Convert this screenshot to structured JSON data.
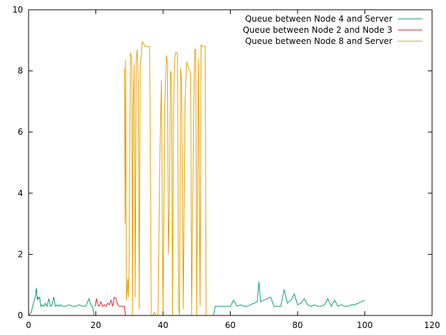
{
  "chart_data": {
    "type": "line",
    "title": "",
    "xlabel": "",
    "ylabel": "",
    "xlim": [
      0,
      120
    ],
    "ylim": [
      0,
      10
    ],
    "xticks": [
      0,
      20,
      40,
      60,
      80,
      100,
      120
    ],
    "yticks": [
      0,
      2,
      4,
      6,
      8,
      10
    ],
    "grid": false,
    "legend_position": "top-right",
    "series": [
      {
        "name": "Queue between Node 4 and Server",
        "color": "#009e73",
        "x": [
          0,
          0.8,
          1.2,
          1.6,
          2.0,
          2.3,
          2.6,
          2.8,
          3.0,
          3.3,
          3.6,
          4.0,
          4.5,
          5.0,
          5.5,
          6.0,
          6.5,
          7.0,
          7.5,
          8.0,
          8.5,
          9.0,
          9.5,
          10.0,
          11.0,
          12.0,
          13.0,
          14.0,
          15.0,
          16.0,
          17.0,
          18.0,
          18.5,
          19.0,
          19.5,
          55.0,
          55.5,
          56.0,
          57.0,
          58.0,
          59.0,
          60.0,
          61.0,
          62.0,
          63.0,
          64.0,
          65.0,
          66.0,
          67.0,
          68.0,
          68.5,
          69.0,
          70.0,
          71.0,
          72.0,
          73.0,
          74.0,
          75.0,
          76.0,
          77.0,
          78.0,
          79.0,
          80.0,
          81.0,
          82.0,
          83.0,
          84.0,
          85.0,
          86.0,
          87.0,
          88.0,
          89.0,
          90.0,
          91.0,
          92.0,
          93.0,
          94.0,
          95.0,
          96.0,
          97.0,
          98.0,
          99.0,
          100.0
        ],
        "values": [
          0,
          0.1,
          0.3,
          0.45,
          0.6,
          0.9,
          0.5,
          0.6,
          0.55,
          0.6,
          0.3,
          0.35,
          0.3,
          0.4,
          0.3,
          0.55,
          0.3,
          0.35,
          0.6,
          0.3,
          0.35,
          0.3,
          0.35,
          0.3,
          0.3,
          0.35,
          0.3,
          0.3,
          0.35,
          0.3,
          0.3,
          0.55,
          0.35,
          0.3,
          0.0,
          0.0,
          0.3,
          0.3,
          0.3,
          0.3,
          0.3,
          0.3,
          0.5,
          0.3,
          0.35,
          0.3,
          0.3,
          0.35,
          0.4,
          0.45,
          1.1,
          0.45,
          0.5,
          0.55,
          0.6,
          0.3,
          0.3,
          0.3,
          0.85,
          0.4,
          0.5,
          0.7,
          0.35,
          0.4,
          0.55,
          0.35,
          0.3,
          0.35,
          0.3,
          0.3,
          0.35,
          0.55,
          0.3,
          0.5,
          0.3,
          0.35,
          0.3,
          0.3,
          0.35,
          0.35,
          0.4,
          0.45,
          0.5
        ]
      },
      {
        "name": "Queue between Node 2 and Node 3",
        "color": "#e41a1c",
        "x": [
          19.8,
          20.2,
          20.6,
          21.0,
          21.5,
          22.0,
          22.5,
          23.0,
          23.5,
          24.0,
          24.5,
          25.0,
          25.5,
          26.0,
          26.5,
          27.0,
          27.5,
          28.0,
          28.5,
          28.8
        ],
        "values": [
          0.3,
          0.55,
          0.35,
          0.3,
          0.45,
          0.3,
          0.35,
          0.3,
          0.4,
          0.35,
          0.5,
          0.3,
          0.6,
          0.55,
          0.35,
          0.3,
          0.3,
          0.3,
          0.3,
          0.0
        ]
      },
      {
        "name": "Queue between Node 8 and Server",
        "color": "#e69f00",
        "x": [
          28.5,
          28.7,
          28.9,
          29.1,
          29.3,
          29.5,
          29.7,
          29.9,
          30.1,
          30.3,
          30.5,
          30.7,
          30.9,
          31.1,
          31.4,
          31.7,
          32.0,
          32.3,
          32.6,
          32.9,
          33.2,
          33.5,
          33.8,
          34.1,
          34.4,
          34.7,
          35.0,
          35.3,
          35.6,
          36.0,
          36.5,
          37.0,
          37.5,
          38.0,
          38.5,
          39.0,
          39.5,
          40.0,
          40.5,
          41.0,
          41.3,
          41.6,
          41.9,
          42.2,
          42.5,
          42.8,
          43.1,
          43.4,
          43.7,
          44.0,
          44.3,
          44.6,
          44.9,
          45.2,
          45.5,
          46.0,
          46.5,
          47.0,
          47.3,
          47.6,
          47.9,
          48.2,
          48.5,
          48.8,
          49.1,
          49.4,
          49.7,
          50.0,
          50.5,
          51.0,
          51.3,
          51.6,
          51.9,
          52.2,
          52.5,
          52.8,
          53.1,
          53.4,
          53.7,
          54.0,
          54.5,
          55.0
        ],
        "values": [
          8.1,
          3.0,
          8.35,
          0.5,
          0.8,
          1.2,
          0.6,
          1.6,
          5.2,
          8.6,
          8.5,
          8.45,
          0.0,
          6.8,
          8.2,
          0.6,
          8.3,
          8.7,
          7.8,
          0.2,
          8.2,
          8.5,
          8.95,
          8.9,
          8.85,
          8.8,
          8.8,
          8.8,
          8.8,
          8.8,
          0.0,
          0.0,
          0.1,
          0.0,
          0.0,
          4.9,
          7.7,
          0.0,
          6.8,
          8.5,
          8.3,
          2.0,
          3.6,
          8.0,
          7.9,
          0.0,
          6.7,
          8.3,
          8.6,
          8.6,
          8.55,
          0.3,
          0.0,
          8.1,
          7.7,
          0.2,
          6.9,
          8.3,
          8.2,
          8.1,
          8.0,
          7.9,
          0.0,
          3.3,
          6.7,
          8.7,
          8.7,
          0.0,
          8.4,
          0.3,
          8.85,
          8.8,
          8.8,
          8.8,
          8.8,
          0.0,
          0.0,
          0.0,
          0.0,
          0.0,
          0.0,
          0.0
        ]
      }
    ]
  }
}
